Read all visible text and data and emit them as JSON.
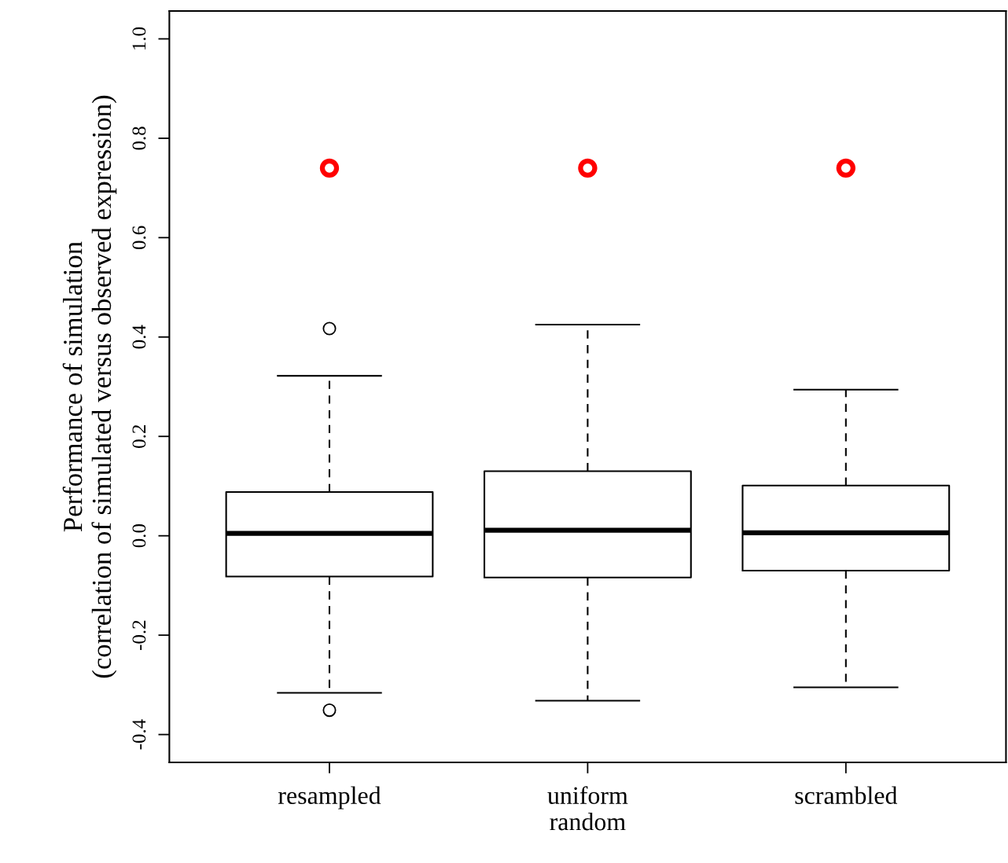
{
  "chart_data": {
    "type": "box",
    "ylabel": "Performance of simulation\n(correlation of simulated versus observed expression)",
    "categories": [
      "resampled",
      "uniform\nrandom",
      "scrambled"
    ],
    "boxes": [
      {
        "low": -0.316,
        "q1": -0.082,
        "median": 0.005,
        "q3": 0.088,
        "high": 0.322,
        "outliers": [
          0.417,
          -0.351
        ]
      },
      {
        "low": -0.332,
        "q1": -0.084,
        "median": 0.011,
        "q3": 0.13,
        "high": 0.425
      },
      {
        "low": -0.305,
        "q1": -0.07,
        "median": 0.006,
        "q3": 0.101,
        "high": 0.294
      }
    ],
    "series": [
      {
        "type": "scatter",
        "color": "#ff0000",
        "marker": "circle",
        "x": [
          "resampled",
          "uniform\nrandom",
          "scrambled"
        ],
        "values": [
          0.74,
          0.74,
          0.74
        ]
      }
    ],
    "ylim": [
      -0.456,
      1.056
    ],
    "yticks": [
      -0.4,
      -0.2,
      {
        "value": 0,
        "label": "0.0"
      },
      0.2,
      0.4,
      0.6,
      0.8,
      {
        "value": 1,
        "label": "1.0"
      }
    ],
    "grid": false,
    "legend": false
  }
}
